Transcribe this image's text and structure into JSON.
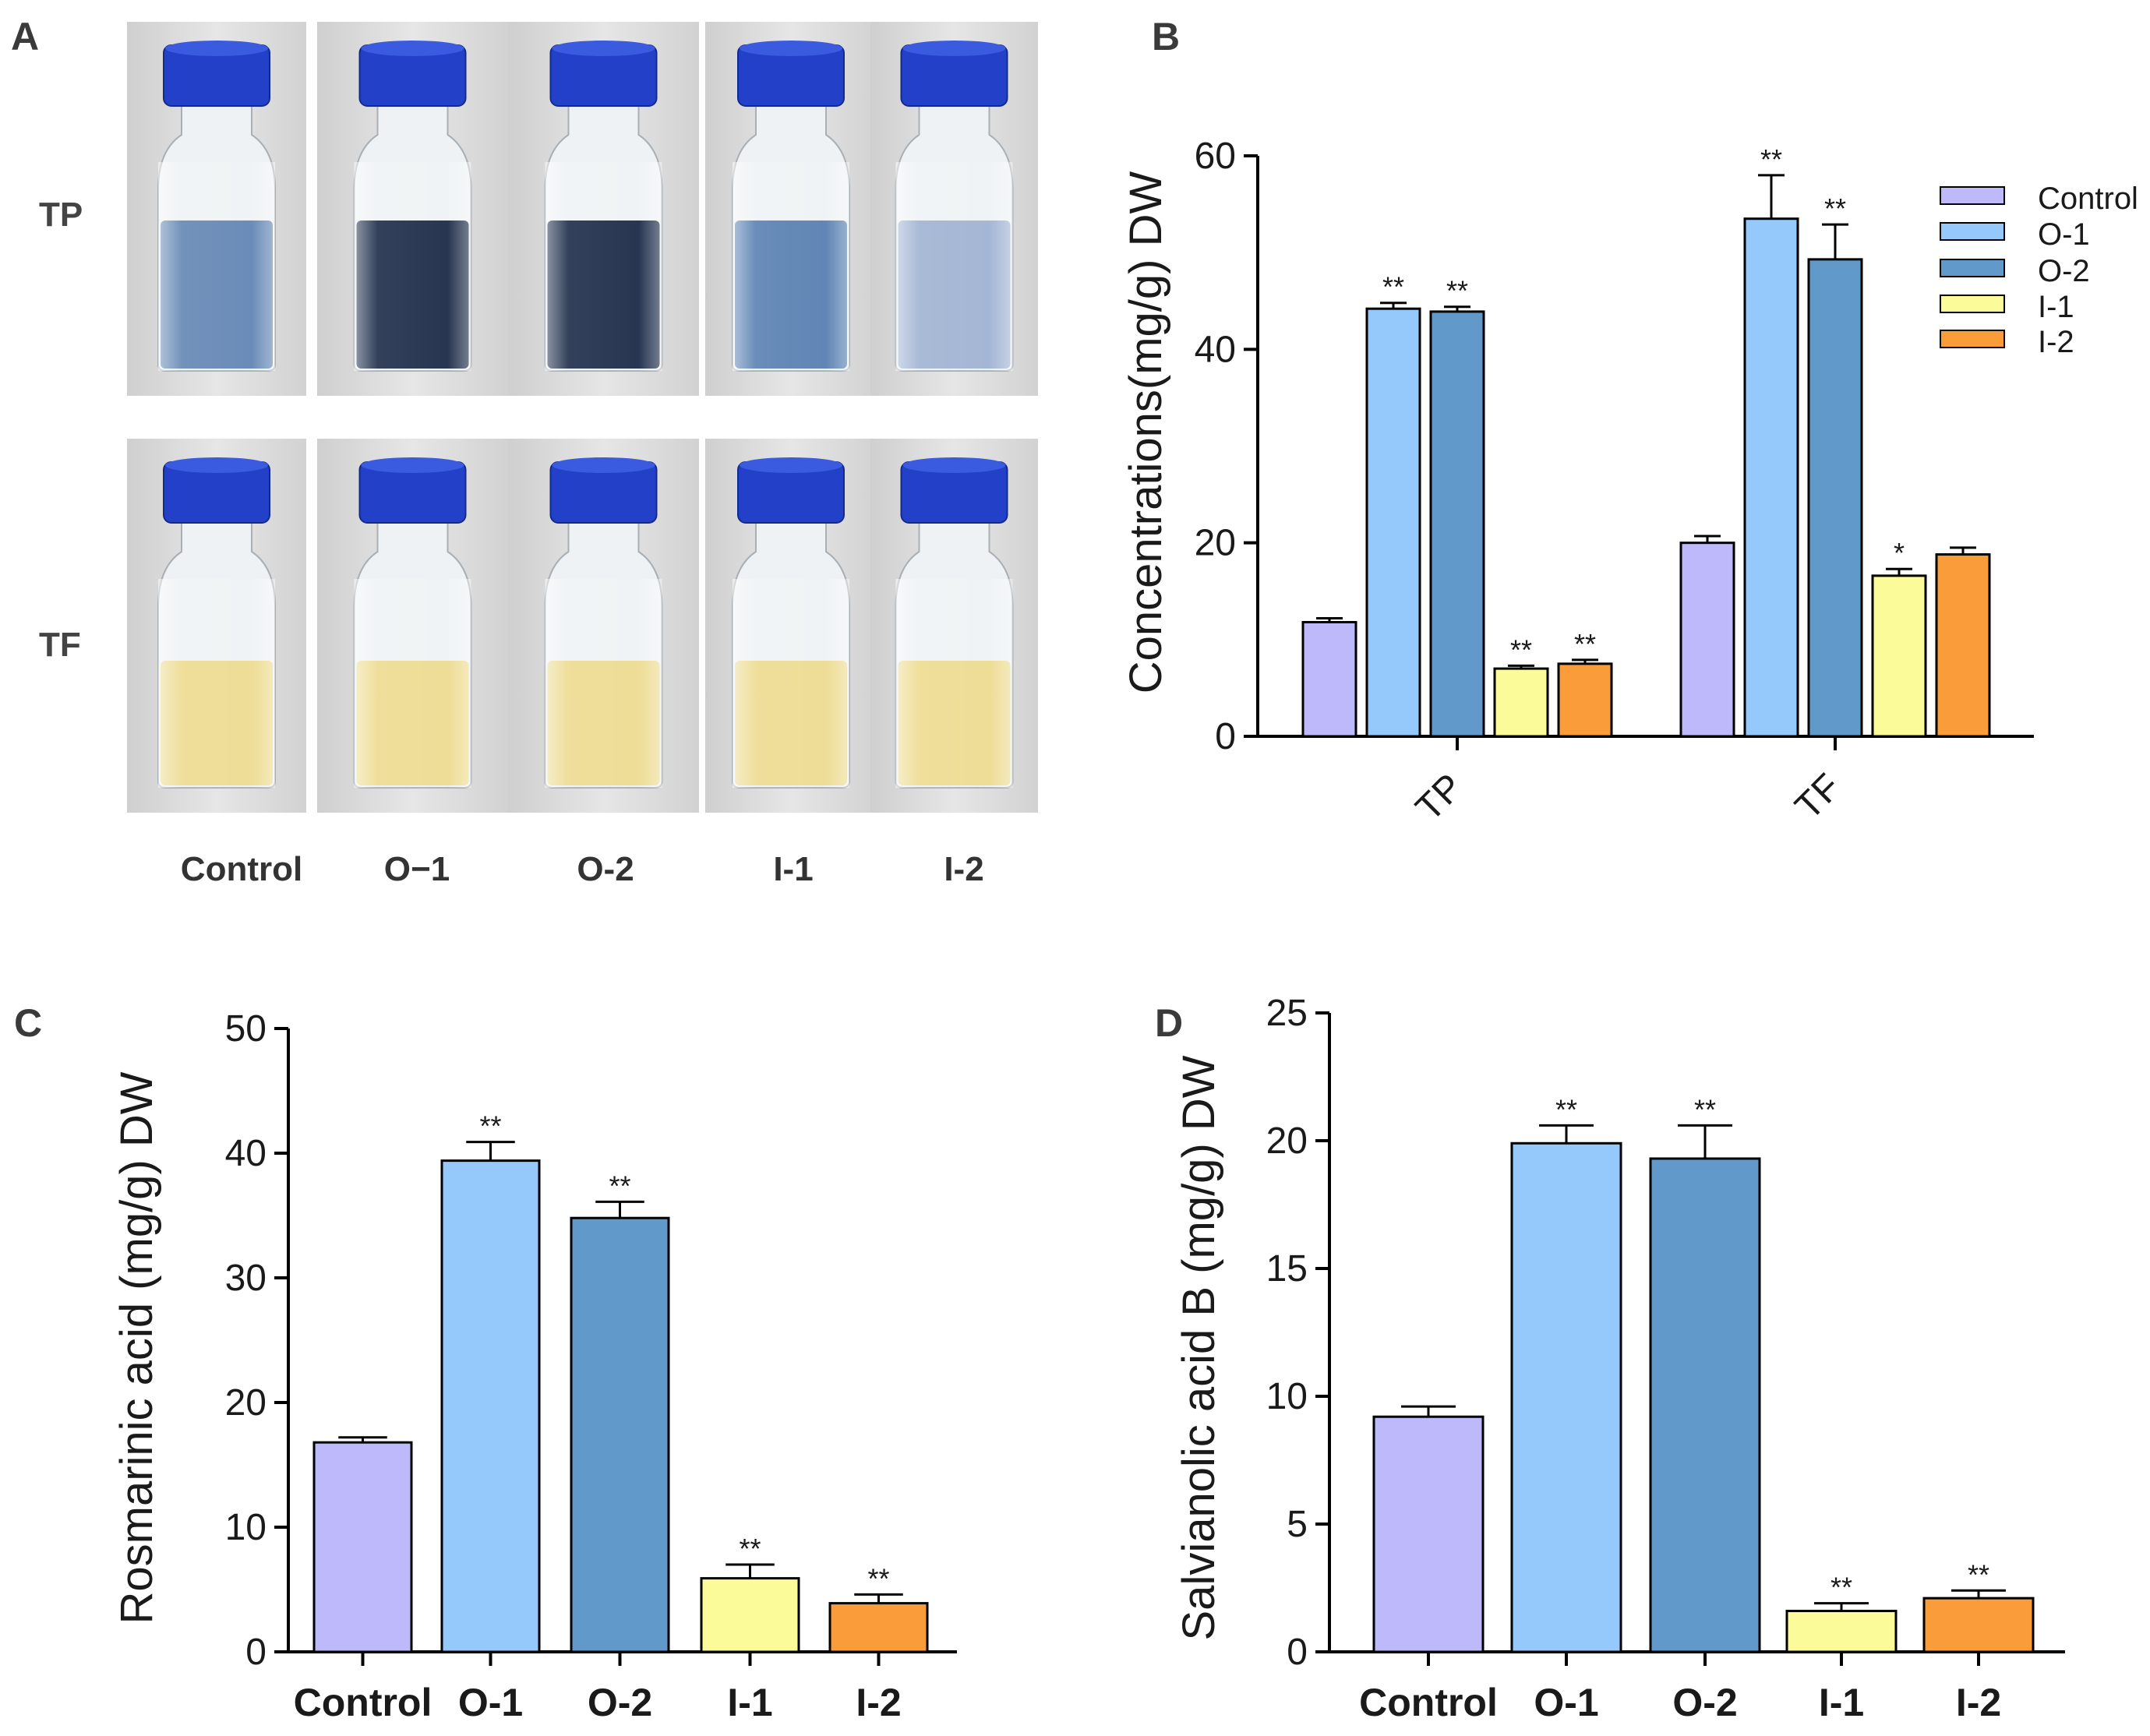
{
  "colors": {
    "control": "#BDB9FB",
    "o1": "#96C9FB",
    "o2": "#6199CB",
    "i1": "#FBFB9A",
    "i2": "#F99C39",
    "tp_liquid_light": "#5a7fb0",
    "tp_liquid_dark": "#0f1f3e",
    "tf_liquid": "#ecd98a",
    "cap": "#2341c8"
  },
  "panels": {
    "a": {
      "label": "A",
      "rows": [
        "TP",
        "TF"
      ],
      "columns": [
        "Control",
        "O−1",
        "O-2",
        "I-1",
        "I-2"
      ]
    },
    "b": {
      "label": "B"
    },
    "c": {
      "label": "C"
    },
    "d": {
      "label": "D"
    }
  },
  "chart_data": [
    {
      "panel": "B",
      "type": "bar",
      "categories": [
        "TP",
        "TF"
      ],
      "series": [
        {
          "name": "Control",
          "values": [
            11.8,
            20.0
          ],
          "errors": [
            0.4,
            0.7
          ],
          "sig": [
            "",
            ""
          ]
        },
        {
          "name": "O-1",
          "values": [
            44.2,
            53.5
          ],
          "errors": [
            0.6,
            4.5
          ],
          "sig": [
            "**",
            "**"
          ]
        },
        {
          "name": "O-2",
          "values": [
            43.9,
            49.3
          ],
          "errors": [
            0.5,
            3.6
          ],
          "sig": [
            "**",
            "**"
          ]
        },
        {
          "name": "I-1",
          "values": [
            7.0,
            16.6
          ],
          "errors": [
            0.3,
            0.7
          ],
          "sig": [
            "**",
            "*"
          ]
        },
        {
          "name": "I-2",
          "values": [
            7.5,
            18.8
          ],
          "errors": [
            0.4,
            0.7
          ],
          "sig": [
            "**",
            ""
          ]
        }
      ],
      "ylabel": "Concentrations(mg/g) DW",
      "yticks": [
        "0",
        "20",
        "40",
        "60"
      ],
      "ylim": [
        0,
        60
      ],
      "legend": "top-right"
    },
    {
      "panel": "C",
      "type": "bar",
      "categories": [
        "Control",
        "O-1",
        "O-2",
        "I-1",
        "I-2"
      ],
      "values": [
        16.8,
        39.4,
        34.8,
        5.9,
        3.9
      ],
      "errors": [
        0.4,
        1.5,
        1.3,
        1.1,
        0.7
      ],
      "sig": [
        "",
        "**",
        "**",
        "**",
        "**"
      ],
      "ylabel": "Rosmarinic acid (mg/g) DW",
      "yticks": [
        "0",
        "10",
        "20",
        "30",
        "40",
        "50"
      ],
      "ylim": [
        0,
        50
      ]
    },
    {
      "panel": "D",
      "type": "bar",
      "categories": [
        "Control",
        "O-1",
        "O-2",
        "I-1",
        "I-2"
      ],
      "values": [
        9.2,
        19.9,
        19.3,
        1.6,
        2.1
      ],
      "errors": [
        0.4,
        0.7,
        1.3,
        0.3,
        0.3
      ],
      "sig": [
        "",
        "**",
        "**",
        "**",
        "**"
      ],
      "ylabel": "Salvianolic acid B (mg/g) DW",
      "yticks": [
        "0",
        "5",
        "10",
        "15",
        "20",
        "25"
      ],
      "ylim": [
        0,
        25
      ]
    }
  ]
}
